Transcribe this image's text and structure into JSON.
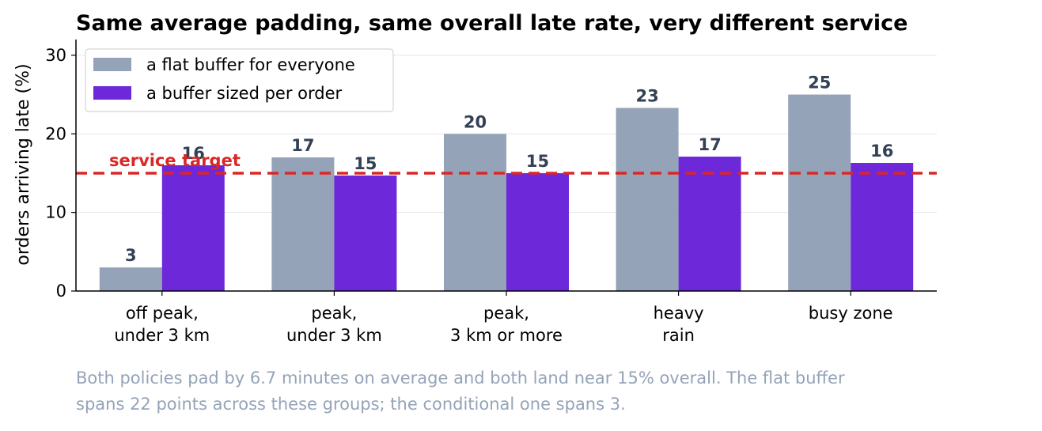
{
  "chart_data": {
    "type": "bar",
    "title": "Same average padding, same overall late rate, very different service",
    "ylabel": "orders arriving late (%)",
    "xlabel": "",
    "ylim": [
      0,
      32
    ],
    "yticks": [
      0,
      10,
      20,
      30
    ],
    "categories": [
      [
        "off peak,",
        "under 3 km"
      ],
      [
        "peak,",
        "under 3 km"
      ],
      [
        "peak,",
        "3 km or more"
      ],
      [
        "heavy",
        "rain"
      ],
      [
        "busy zone"
      ]
    ],
    "series": [
      {
        "name": "a flat buffer for everyone",
        "color": "#94a3b8",
        "values": [
          3,
          17,
          20,
          23.3,
          25
        ],
        "labels": [
          "3",
          "17",
          "20",
          "23",
          "25"
        ]
      },
      {
        "name": "a buffer sized per order",
        "color": "#6d28d9",
        "values": [
          16,
          14.7,
          15,
          17.1,
          16.3
        ],
        "labels": [
          "16",
          "15",
          "15",
          "17",
          "16"
        ]
      }
    ],
    "reference_line": {
      "value": 15,
      "label": "service target",
      "color": "#dc2626",
      "style": "dashed"
    },
    "legend_position": "upper-left",
    "grid": "horizontal"
  },
  "caption": [
    "Both policies pad by 6.7 minutes on average and both land near 15% overall. The flat buffer",
    "spans 22 points across these groups; the conditional one spans 3."
  ]
}
